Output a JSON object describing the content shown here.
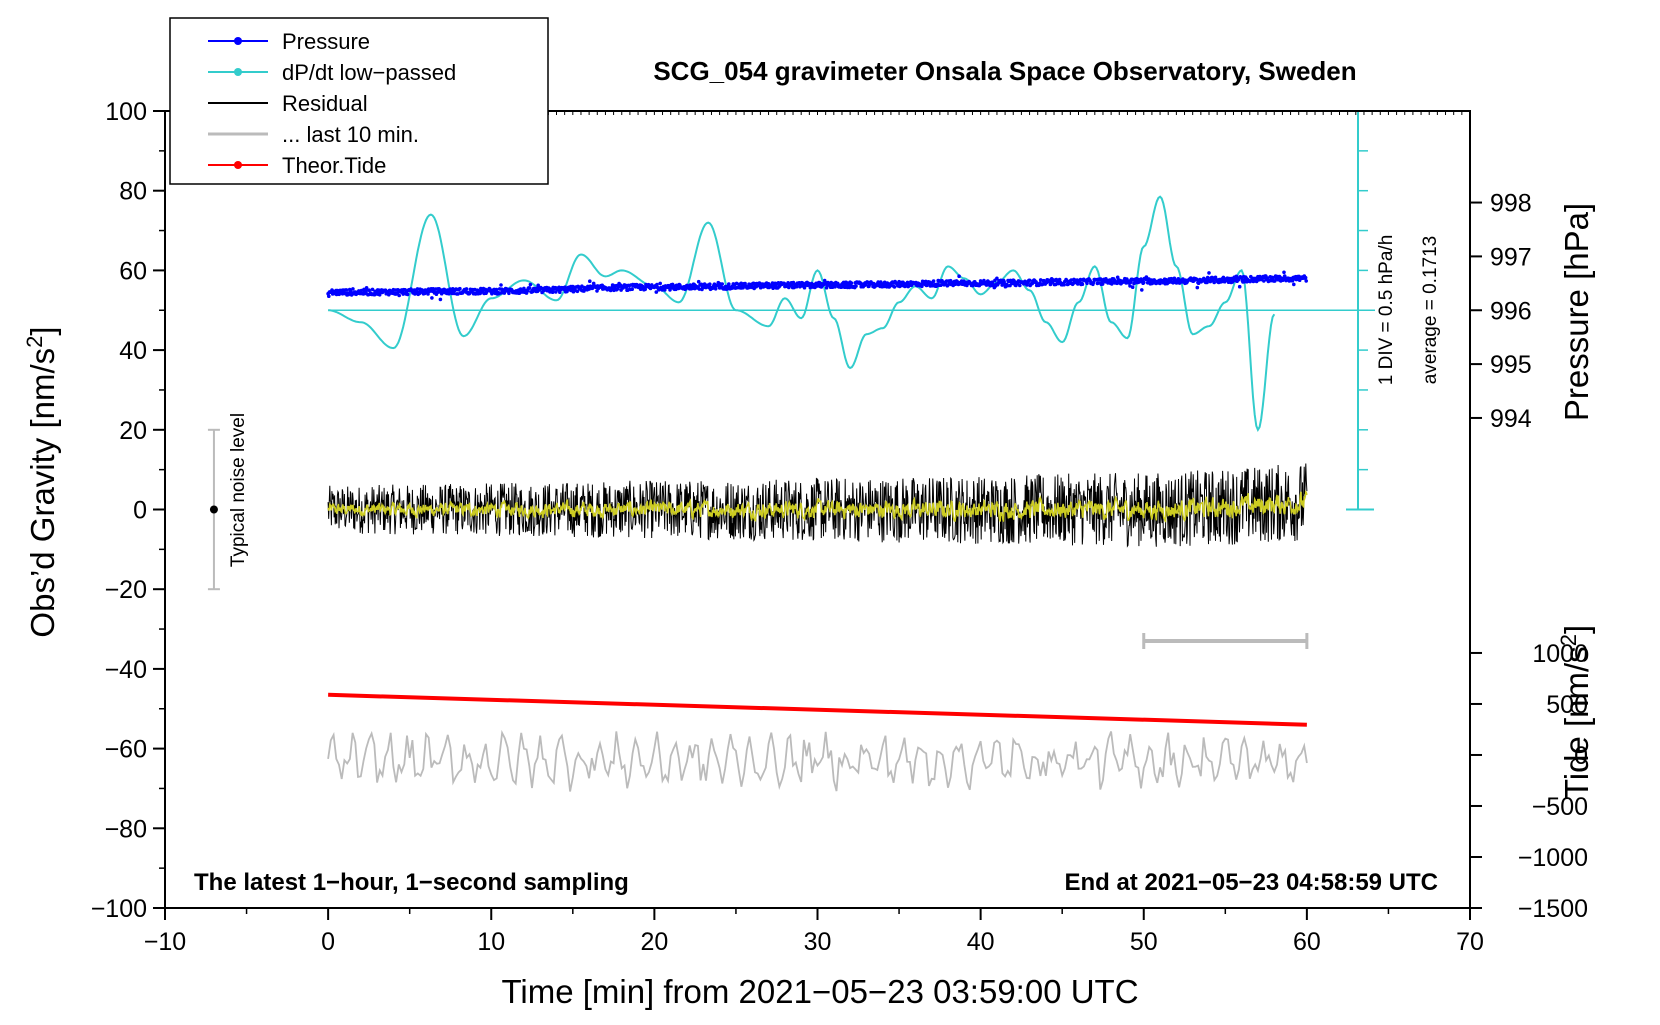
{
  "chart_data": {
    "type": "line",
    "title": "SCG_054 gravimeter Onsala Space Observatory, Sweden",
    "xlabel": "Time [min] from 2021−05−23 03:59:00 UTC",
    "ylabel_left": "Obs’d Gravity [nm/s",
    "ylabel_left_sup": "2",
    "ylabel_left_end": "]",
    "ylabel_right_pressure": "Pressure [hPa]",
    "ylabel_right_tide": "Tide [nm/s",
    "ylabel_right_tide_sup": "2",
    "ylabel_right_tide_end": "]",
    "xlim": [
      -10,
      70
    ],
    "ylim": [
      -100,
      100
    ],
    "x_ticks": [
      "−10",
      "0",
      "10",
      "20",
      "30",
      "40",
      "50",
      "60",
      "70"
    ],
    "y_ticks": [
      "−100",
      "−80",
      "−60",
      "−40",
      "−20",
      "0",
      "20",
      "40",
      "60",
      "80",
      "100"
    ],
    "pressure_ticks": [
      "994",
      "995",
      "996",
      "997",
      "998"
    ],
    "tide_ticks": [
      "−1500",
      "−1000",
      "−500",
      "0",
      "500",
      "1000"
    ],
    "legend_position": "top-left",
    "legend": [
      {
        "label": "Pressure",
        "color": "#0000ff",
        "marker": "dot"
      },
      {
        "label": "dP/dt low−passed",
        "color": "#33cccc",
        "marker": "dot"
      },
      {
        "label": "Residual",
        "color": "#000000",
        "marker": "none"
      },
      {
        "label": "... last 10 min.",
        "color": "#bbbbbb",
        "marker": "none"
      },
      {
        "label": "Theor.Tide",
        "color": "#ff0000",
        "marker": "dot"
      }
    ],
    "annotations": {
      "scale_div": "1 DIV = 0.5 hPa/h",
      "average": "average = 0.1713",
      "noise_label": "Typical noise level",
      "bottom_left": "The latest 1−hour, 1−second sampling",
      "bottom_right": "End at 2021−05−23 04:58:59 UTC"
    },
    "noise_bar": {
      "x": -7,
      "y": 0,
      "low": -20,
      "high": 20
    },
    "last10_bar": {
      "x_start": 50,
      "x_end": 60,
      "y": -33
    },
    "series": [
      {
        "name": "Pressure",
        "note": "plotted on gravity axis scale",
        "x": [
          0,
          10,
          20,
          30,
          40,
          50,
          60
        ],
        "values": [
          54.5,
          54.8,
          55.8,
          56.3,
          56.8,
          57.3,
          58.0
        ]
      },
      {
        "name": "dP/dt low-passed",
        "baseline": 50,
        "x": [
          0,
          2,
          4,
          6.3,
          8.3,
          10,
          12,
          14,
          15.5,
          17,
          18,
          20,
          21.5,
          23.3,
          25,
          27,
          28,
          29,
          30,
          31,
          32,
          33,
          34,
          35,
          36,
          37,
          38,
          39,
          40,
          41,
          42,
          43,
          44,
          45,
          46,
          47,
          48,
          49,
          50,
          51,
          52,
          53,
          54,
          55,
          56,
          57,
          58
        ],
        "values": [
          50,
          47,
          40.5,
          74,
          43.5,
          53,
          57.5,
          52.5,
          64,
          58.5,
          60,
          56,
          52,
          72,
          50,
          46,
          53,
          48,
          60,
          48,
          35.5,
          44,
          45.5,
          52,
          56,
          53,
          61,
          58,
          54,
          57,
          60,
          55,
          47,
          42,
          52,
          61,
          47,
          43,
          66,
          78.5,
          61,
          44,
          46,
          52,
          60,
          20,
          49
        ]
      },
      {
        "name": "Residual",
        "x": [
          0,
          60
        ],
        "values": [
          0,
          0
        ],
        "amplitude_start": 6,
        "amplitude_end": 10
      },
      {
        "name": "Theor.Tide",
        "x": [
          0,
          60
        ],
        "values": [
          -46.5,
          -54
        ]
      },
      {
        "name": "last 10 min.",
        "baseline": -63,
        "x": [
          0,
          60
        ],
        "amplitude": 6
      }
    ]
  }
}
